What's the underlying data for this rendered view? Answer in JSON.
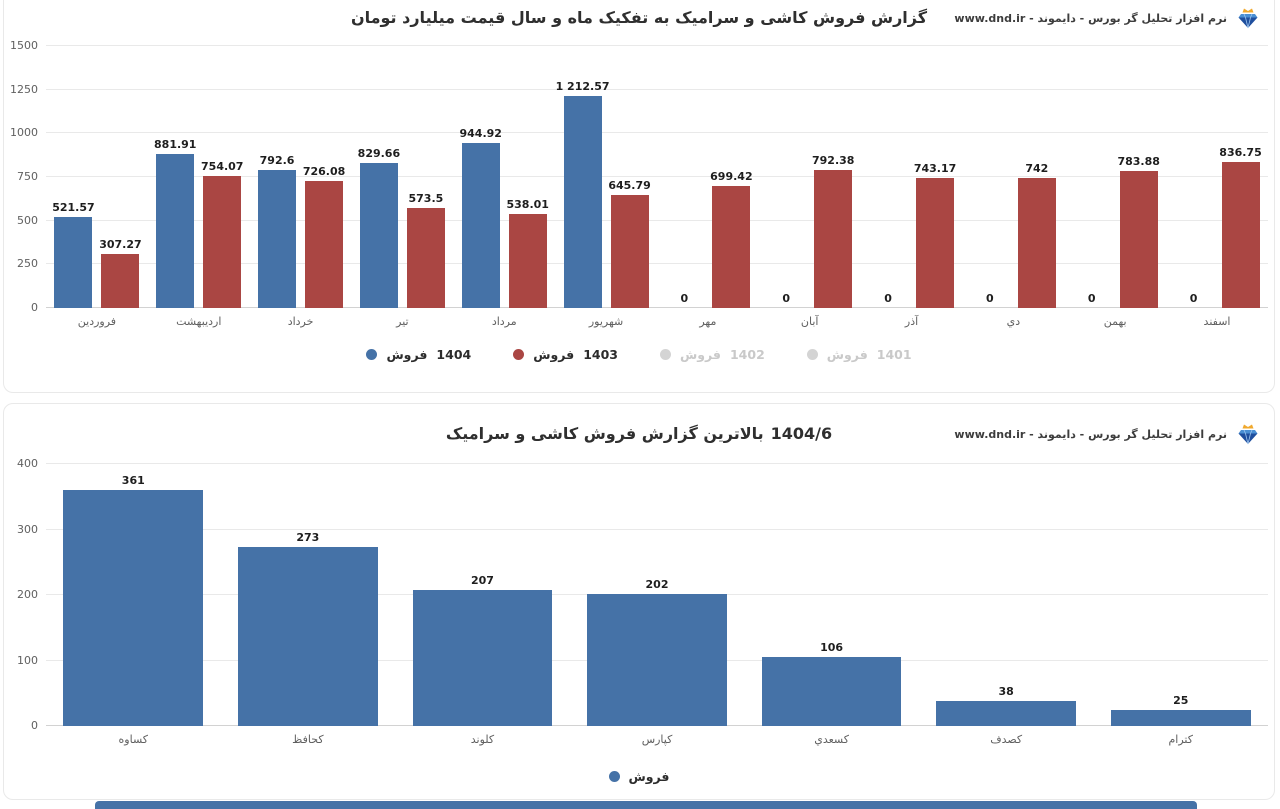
{
  "header": {
    "brand_text": "نرم افزار تحلیل گر بورس - دایموند - www.dnd.ir",
    "brand_icon": "diamond-icon"
  },
  "colors": {
    "series_blue": "#4572a7",
    "series_red": "#aa4643",
    "disabled_gray": "#d4d4d4",
    "grid": "#e9e9e9"
  },
  "chart_data": [
    {
      "type": "bar",
      "title": "گزارش فروش کاشی و سرامیک به تفکیک ماه و سال قیمت میلیارد تومان",
      "categories": [
        "فروردين",
        "ارديبهشت",
        "خرداد",
        "تير",
        "مرداد",
        "شهريور",
        "مهر",
        "آبان",
        "آذر",
        "دي",
        "بهمن",
        "اسفند"
      ],
      "series": [
        {
          "word": "فروش",
          "year": "1404",
          "label": "فروش 1404",
          "color": "#4572a7",
          "enabled": true,
          "values": [
            521.57,
            881.91,
            792.6,
            829.66,
            944.92,
            1212.57,
            0,
            0,
            0,
            0,
            0,
            0
          ],
          "labels": [
            "521.57",
            "881.91",
            "792.6",
            "829.66",
            "944.92",
            "1 212.57",
            "0",
            "0",
            "0",
            "0",
            "0",
            "0"
          ]
        },
        {
          "word": "فروش",
          "year": "1403",
          "label": "فروش 1403",
          "color": "#aa4643",
          "enabled": true,
          "values": [
            307.27,
            754.07,
            726.08,
            573.5,
            538.01,
            645.79,
            699.42,
            792.38,
            743.17,
            742,
            783.88,
            836.75
          ],
          "labels": [
            "307.27",
            "754.07",
            "726.08",
            "573.5",
            "538.01",
            "645.79",
            "699.42",
            "792.38",
            "743.17",
            "742",
            "783.88",
            "836.75"
          ]
        },
        {
          "word": "فروش",
          "year": "1402",
          "label": "فروش 1402",
          "color": "#d4d4d4",
          "enabled": false
        },
        {
          "word": "فروش",
          "year": "1401",
          "label": "فروش 1401",
          "color": "#d4d4d4",
          "enabled": false
        }
      ],
      "ylim": [
        0,
        1500
      ],
      "yticks": [
        0,
        250,
        500,
        750,
        1000,
        1250,
        1500
      ],
      "grid": true,
      "legend_position": "bottom"
    },
    {
      "type": "bar",
      "title_text": "بالاترین گزارش فروش کاشی و سرامیک",
      "title_period": "1404/6",
      "categories": [
        "كساوه",
        "كحافظ",
        "كلوند",
        "كپارس",
        "كسعدي",
        "كصدف",
        "كترام"
      ],
      "series": [
        {
          "word": "فروش",
          "year": "",
          "label": "فروش",
          "color": "#4572a7",
          "enabled": true,
          "values": [
            361,
            273,
            207,
            202,
            106,
            38,
            25
          ],
          "labels": [
            "361",
            "273",
            "207",
            "202",
            "106",
            "38",
            "25"
          ]
        }
      ],
      "ylim": [
        0,
        400
      ],
      "yticks": [
        0,
        100,
        200,
        300,
        400
      ],
      "grid": true,
      "legend_position": "bottom"
    }
  ]
}
